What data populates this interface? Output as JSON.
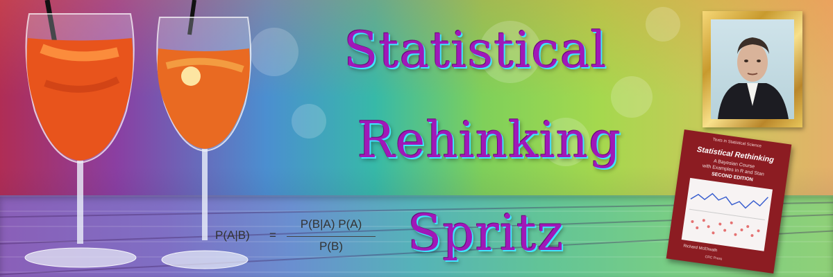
{
  "title": {
    "line1": "Statistical",
    "line2": "Rehinking",
    "line3": "Spritz"
  },
  "formula": {
    "lhs": "P(A|B)",
    "equals": "=",
    "numerator": "P(B|A) P(A)",
    "denominator": "P(B)"
  },
  "book": {
    "series": "Texts in Statistical Science",
    "title": "Statistical Rethinking",
    "subtitle_line1": "A Bayesian Course",
    "subtitle_line2": "with Examples in R and Stan",
    "edition": "SECOND EDITION",
    "author": "Richard McElreath",
    "publisher": "CRC Press"
  },
  "colors": {
    "title_fill": "#a018b8",
    "title_outline": "#3fe6ff",
    "book_cover": "#8c1c22",
    "frame_gold": "#d4a63a",
    "spritz_orange": "#e8541c"
  },
  "icons": {
    "left_glass": "spritz-glass-icon",
    "right_glass": "spritz-glass-icon",
    "portrait": "bayes-portrait-icon"
  }
}
